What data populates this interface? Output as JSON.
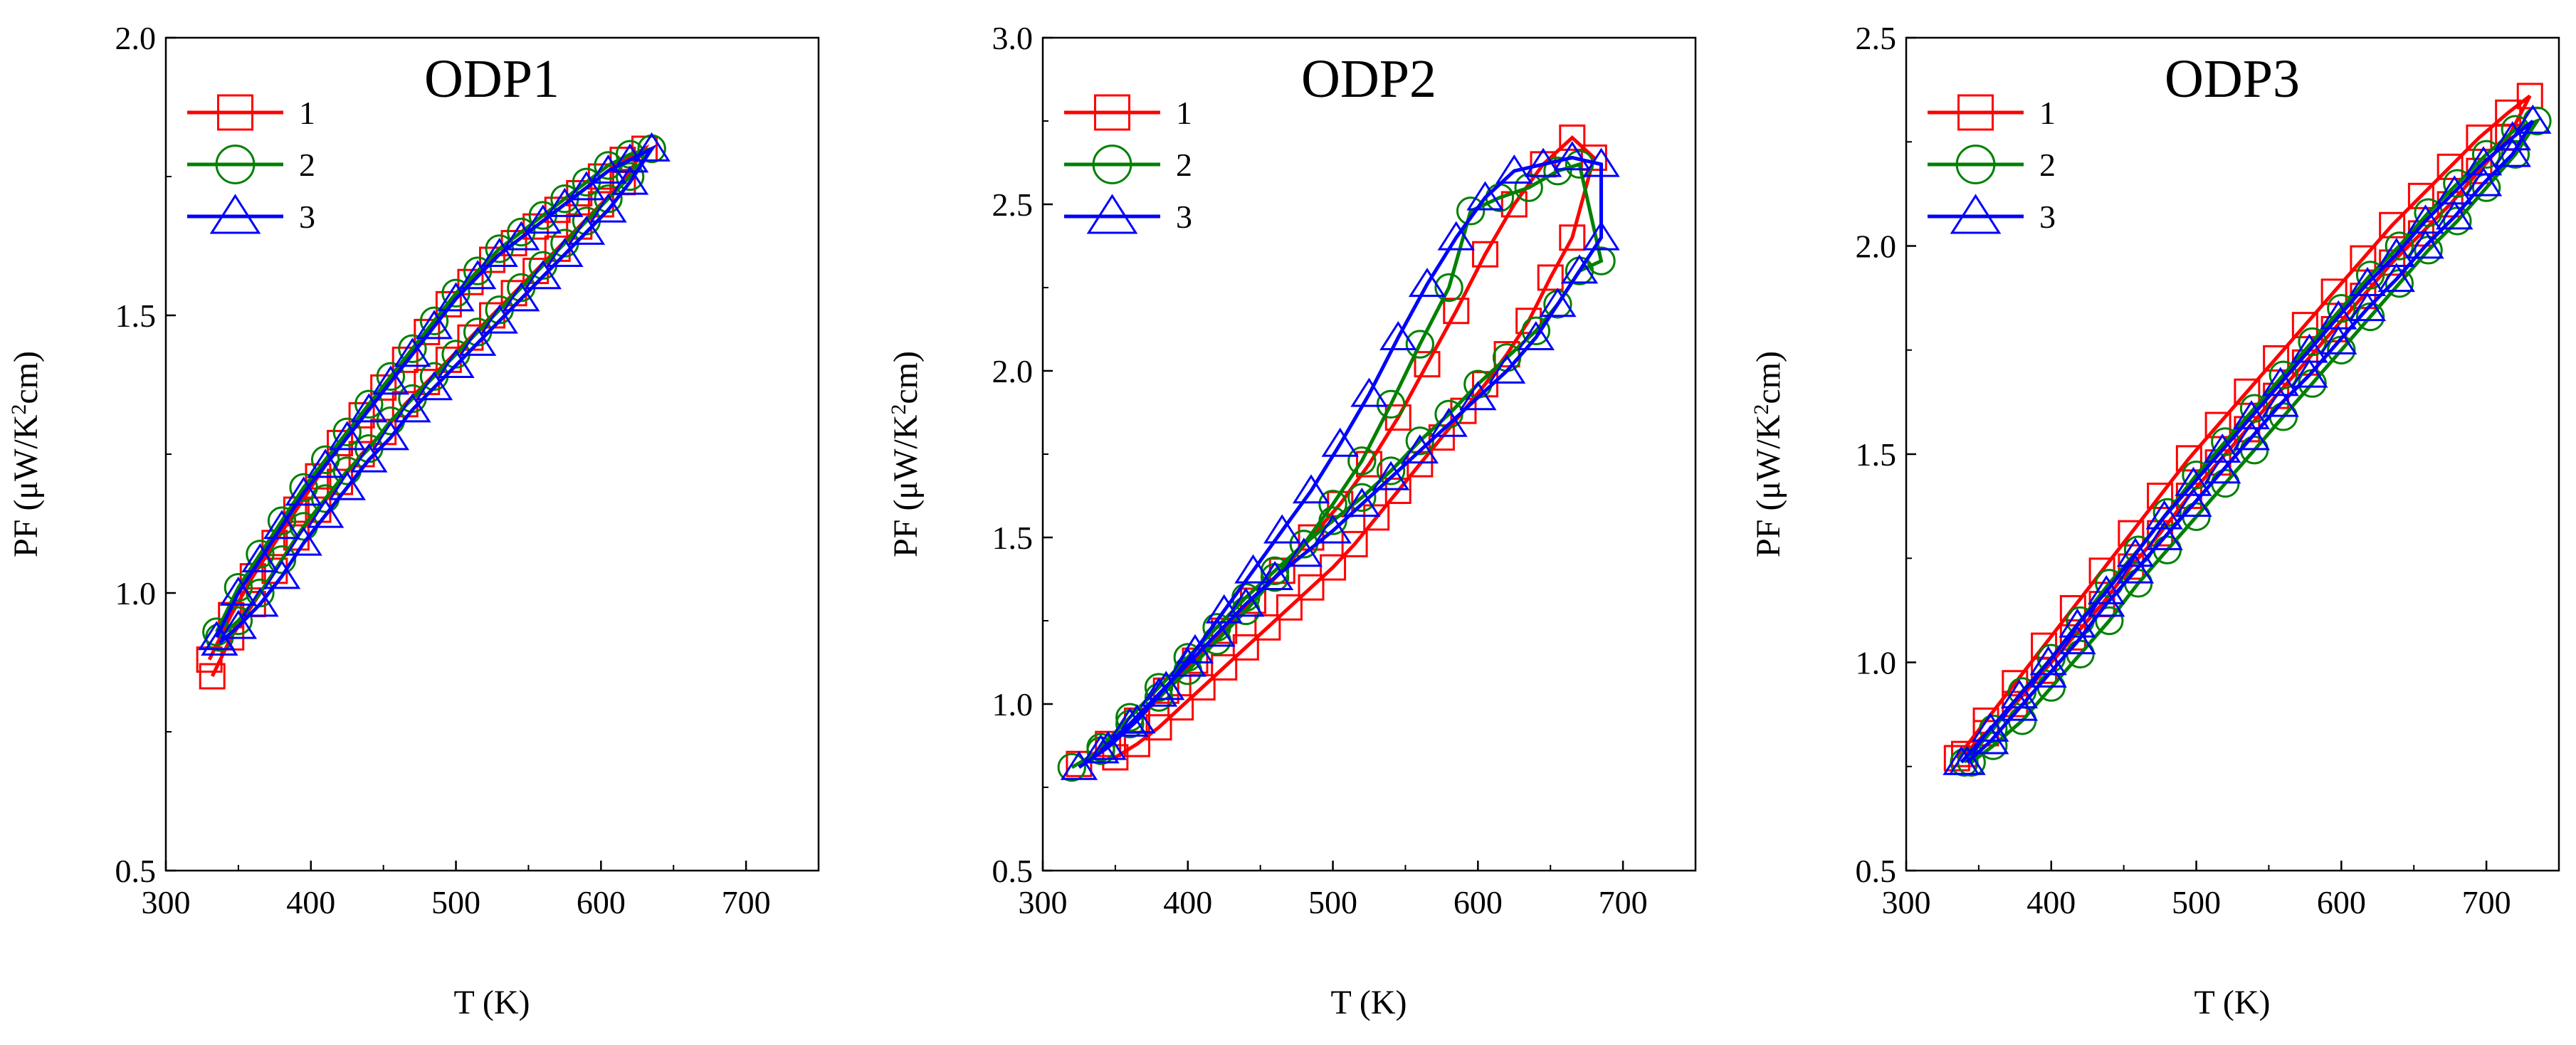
{
  "figure": {
    "background": "#ffffff"
  },
  "chart_data": [
    {
      "type": "scatter",
      "title": "ODP1",
      "xlabel": "T (K)",
      "ylabel": "PF (μW/K²cm)",
      "ylabel_parts": {
        "prefix": "PF (μW/K",
        "sup": "2",
        "suffix": "cm)"
      },
      "xlim": [
        300,
        750
      ],
      "ylim": [
        0.5,
        2.0
      ],
      "xticks": [
        300,
        400,
        500,
        600,
        700
      ],
      "xtick_labels": [
        "300",
        "400",
        "500",
        "600",
        "700"
      ],
      "yticks": [
        0.5,
        1.0,
        1.5,
        2.0
      ],
      "ytick_labels": [
        "0.5",
        "1.0",
        "1.5",
        "2.0"
      ],
      "legend": {
        "position": "top-left",
        "entries": [
          "1",
          "2",
          "3"
        ]
      },
      "series": [
        {
          "name": "1",
          "color": "#ff0000",
          "marker": "square",
          "x": [
            330,
            345,
            360,
            375,
            390,
            405,
            420,
            435,
            450,
            465,
            480,
            495,
            510,
            525,
            540,
            555,
            570,
            585,
            600,
            615,
            630,
            615,
            600,
            585,
            570,
            555,
            540,
            525,
            510,
            495,
            480,
            465,
            450,
            435,
            420,
            405,
            390,
            375,
            360,
            345,
            332
          ],
          "y": [
            0.88,
            0.96,
            1.03,
            1.09,
            1.15,
            1.21,
            1.27,
            1.32,
            1.37,
            1.42,
            1.47,
            1.52,
            1.56,
            1.6,
            1.63,
            1.66,
            1.69,
            1.72,
            1.75,
            1.78,
            1.8,
            1.74,
            1.7,
            1.66,
            1.62,
            1.58,
            1.54,
            1.5,
            1.46,
            1.42,
            1.38,
            1.34,
            1.29,
            1.25,
            1.2,
            1.15,
            1.1,
            1.04,
            0.98,
            0.92,
            0.85
          ]
        },
        {
          "name": "2",
          "color": "#008000",
          "marker": "circle",
          "x": [
            335,
            350,
            365,
            380,
            395,
            410,
            425,
            440,
            455,
            470,
            485,
            500,
            515,
            530,
            545,
            560,
            575,
            590,
            605,
            620,
            635,
            620,
            605,
            590,
            575,
            560,
            545,
            530,
            515,
            500,
            485,
            470,
            455,
            440,
            425,
            410,
            395,
            380,
            365,
            350,
            337
          ],
          "y": [
            0.93,
            1.01,
            1.07,
            1.13,
            1.19,
            1.24,
            1.29,
            1.34,
            1.39,
            1.44,
            1.49,
            1.54,
            1.58,
            1.62,
            1.65,
            1.68,
            1.71,
            1.74,
            1.77,
            1.79,
            1.8,
            1.75,
            1.71,
            1.67,
            1.63,
            1.59,
            1.55,
            1.51,
            1.47,
            1.43,
            1.39,
            1.35,
            1.31,
            1.26,
            1.22,
            1.17,
            1.12,
            1.06,
            1.0,
            0.95,
            0.92
          ]
        },
        {
          "name": "3",
          "color": "#0000ff",
          "marker": "triangle",
          "x": [
            335,
            350,
            365,
            380,
            395,
            410,
            425,
            440,
            455,
            470,
            485,
            500,
            515,
            530,
            545,
            560,
            575,
            590,
            605,
            620,
            635,
            620,
            605,
            590,
            575,
            560,
            545,
            530,
            515,
            500,
            485,
            470,
            455,
            440,
            425,
            410,
            395,
            380,
            365,
            350,
            337
          ],
          "y": [
            0.92,
            1.0,
            1.06,
            1.12,
            1.18,
            1.23,
            1.28,
            1.33,
            1.38,
            1.43,
            1.48,
            1.53,
            1.57,
            1.61,
            1.64,
            1.67,
            1.7,
            1.73,
            1.76,
            1.78,
            1.8,
            1.74,
            1.69,
            1.65,
            1.61,
            1.57,
            1.53,
            1.49,
            1.45,
            1.41,
            1.37,
            1.33,
            1.28,
            1.24,
            1.19,
            1.14,
            1.09,
            1.03,
            0.98,
            0.94,
            0.91
          ]
        }
      ]
    },
    {
      "type": "scatter",
      "title": "ODP2",
      "xlabel": "T (K)",
      "ylabel": "PF (μW/K²cm)",
      "ylabel_parts": {
        "prefix": "PF (μW/K",
        "sup": "2",
        "suffix": "cm)"
      },
      "xlim": [
        300,
        750
      ],
      "ylim": [
        0.5,
        3.0
      ],
      "xticks": [
        300,
        400,
        500,
        600,
        700
      ],
      "xtick_labels": [
        "300",
        "400",
        "500",
        "600",
        "700"
      ],
      "yticks": [
        0.5,
        1.0,
        1.5,
        2.0,
        2.5,
        3.0
      ],
      "ytick_labels": [
        "0.5",
        "1.0",
        "1.5",
        "2.0",
        "2.5",
        "3.0"
      ],
      "legend": {
        "position": "top-left",
        "entries": [
          "1",
          "2",
          "3"
        ]
      },
      "series": [
        {
          "name": "1",
          "color": "#ff0000",
          "marker": "square",
          "x": [
            325,
            345,
            365,
            385,
            405,
            425,
            445,
            465,
            485,
            505,
            525,
            545,
            565,
            585,
            605,
            625,
            645,
            665,
            680,
            665,
            650,
            635,
            620,
            605,
            590,
            575,
            560,
            545,
            530,
            515,
            500,
            485,
            470,
            455,
            440,
            425,
            410,
            395,
            380,
            365,
            350
          ],
          "y": [
            0.82,
            0.88,
            0.95,
            1.04,
            1.13,
            1.22,
            1.31,
            1.4,
            1.5,
            1.6,
            1.72,
            1.86,
            2.02,
            2.18,
            2.35,
            2.5,
            2.62,
            2.7,
            2.64,
            2.4,
            2.28,
            2.15,
            2.05,
            1.96,
            1.88,
            1.8,
            1.72,
            1.64,
            1.56,
            1.48,
            1.41,
            1.35,
            1.29,
            1.23,
            1.17,
            1.11,
            1.05,
            0.99,
            0.93,
            0.88,
            0.84
          ]
        },
        {
          "name": "2",
          "color": "#008000",
          "marker": "circle",
          "x": [
            320,
            340,
            360,
            380,
            400,
            420,
            440,
            460,
            480,
            500,
            520,
            540,
            560,
            580,
            595,
            615,
            635,
            655,
            670,
            685,
            670,
            655,
            640,
            620,
            600,
            580,
            560,
            540,
            520,
            500,
            480,
            460,
            440,
            420,
            400,
            380,
            360,
            340
          ],
          "y": [
            0.81,
            0.86,
            0.94,
            1.02,
            1.1,
            1.19,
            1.28,
            1.38,
            1.48,
            1.6,
            1.73,
            1.9,
            2.08,
            2.25,
            2.48,
            2.52,
            2.55,
            2.6,
            2.62,
            2.33,
            2.3,
            2.2,
            2.12,
            2.04,
            1.96,
            1.87,
            1.79,
            1.7,
            1.62,
            1.55,
            1.48,
            1.4,
            1.32,
            1.23,
            1.14,
            1.05,
            0.96,
            0.87
          ]
        },
        {
          "name": "3",
          "color": "#0000ff",
          "marker": "triangle",
          "x": [
            325,
            345,
            365,
            385,
            405,
            425,
            445,
            465,
            485,
            505,
            525,
            545,
            565,
            585,
            605,
            625,
            645,
            665,
            685,
            685,
            670,
            655,
            640,
            620,
            600,
            580,
            560,
            540,
            520,
            500,
            480,
            460,
            440,
            420,
            400,
            380,
            360,
            340
          ],
          "y": [
            0.81,
            0.87,
            0.95,
            1.05,
            1.16,
            1.28,
            1.4,
            1.52,
            1.64,
            1.78,
            1.93,
            2.1,
            2.26,
            2.4,
            2.52,
            2.6,
            2.62,
            2.64,
            2.62,
            2.4,
            2.3,
            2.2,
            2.1,
            2.0,
            1.92,
            1.84,
            1.76,
            1.68,
            1.6,
            1.52,
            1.45,
            1.38,
            1.3,
            1.21,
            1.12,
            1.03,
            0.94,
            0.86
          ]
        }
      ]
    },
    {
      "type": "scatter",
      "title": "ODP3",
      "xlabel": "T (K)",
      "ylabel": "PF (μW/K²cm)",
      "ylabel_parts": {
        "prefix": "PF (μW/K",
        "sup": "2",
        "suffix": "cm)"
      },
      "xlim": [
        300,
        750
      ],
      "ylim": [
        0.5,
        2.5
      ],
      "xticks": [
        300,
        400,
        500,
        600,
        700
      ],
      "xtick_labels": [
        "300",
        "400",
        "500",
        "600",
        "700"
      ],
      "yticks": [
        0.5,
        1.0,
        1.5,
        2.0,
        2.5
      ],
      "ytick_labels": [
        "0.5",
        "1.0",
        "1.5",
        "2.0",
        "2.5"
      ],
      "legend": {
        "position": "top-left",
        "entries": [
          "1",
          "2",
          "3"
        ]
      },
      "series": [
        {
          "name": "1",
          "color": "#ff0000",
          "marker": "square",
          "x": [
            335,
            355,
            375,
            395,
            415,
            435,
            455,
            475,
            495,
            515,
            535,
            555,
            575,
            595,
            615,
            635,
            655,
            675,
            695,
            715,
            730,
            715,
            695,
            675,
            655,
            635,
            615,
            595,
            575,
            555,
            535,
            515,
            495,
            475,
            455,
            435,
            415,
            395,
            375,
            355,
            340
          ],
          "y": [
            0.77,
            0.86,
            0.95,
            1.04,
            1.13,
            1.22,
            1.31,
            1.4,
            1.49,
            1.57,
            1.65,
            1.73,
            1.81,
            1.89,
            1.97,
            2.05,
            2.12,
            2.19,
            2.26,
            2.32,
            2.36,
            2.26,
            2.18,
            2.1,
            2.03,
            1.96,
            1.88,
            1.8,
            1.72,
            1.64,
            1.56,
            1.48,
            1.4,
            1.31,
            1.23,
            1.14,
            1.06,
            0.98,
            0.9,
            0.83,
            0.78
          ]
        },
        {
          "name": "2",
          "color": "#008000",
          "marker": "circle",
          "x": [
            340,
            360,
            380,
            400,
            420,
            440,
            460,
            480,
            500,
            520,
            540,
            560,
            580,
            600,
            620,
            640,
            660,
            680,
            700,
            720,
            735,
            720,
            700,
            680,
            660,
            640,
            620,
            600,
            580,
            560,
            540,
            520,
            500,
            480,
            460,
            440,
            420,
            400,
            380,
            360,
            345
          ],
          "y": [
            0.76,
            0.84,
            0.93,
            1.01,
            1.1,
            1.19,
            1.27,
            1.36,
            1.45,
            1.53,
            1.61,
            1.69,
            1.77,
            1.85,
            1.93,
            2.0,
            2.08,
            2.15,
            2.22,
            2.28,
            2.3,
            2.22,
            2.14,
            2.06,
            1.99,
            1.91,
            1.83,
            1.75,
            1.67,
            1.59,
            1.51,
            1.43,
            1.35,
            1.27,
            1.19,
            1.1,
            1.02,
            0.94,
            0.86,
            0.8,
            0.76
          ]
        },
        {
          "name": "3",
          "color": "#0000ff",
          "marker": "triangle",
          "x": [
            338,
            358,
            378,
            398,
            418,
            438,
            458,
            478,
            498,
            518,
            538,
            558,
            578,
            598,
            618,
            638,
            658,
            678,
            698,
            718,
            732,
            718,
            698,
            678,
            658,
            638,
            618,
            598,
            578,
            558,
            538,
            518,
            498,
            478,
            458,
            438,
            418,
            398,
            378,
            358,
            342
          ],
          "y": [
            0.76,
            0.84,
            0.92,
            1.0,
            1.09,
            1.17,
            1.26,
            1.35,
            1.43,
            1.51,
            1.59,
            1.67,
            1.75,
            1.83,
            1.91,
            1.98,
            2.06,
            2.13,
            2.2,
            2.26,
            2.3,
            2.22,
            2.15,
            2.07,
            2.0,
            1.92,
            1.85,
            1.77,
            1.69,
            1.62,
            1.54,
            1.46,
            1.38,
            1.3,
            1.22,
            1.14,
            1.05,
            0.97,
            0.89,
            0.81,
            0.76
          ]
        }
      ]
    }
  ]
}
